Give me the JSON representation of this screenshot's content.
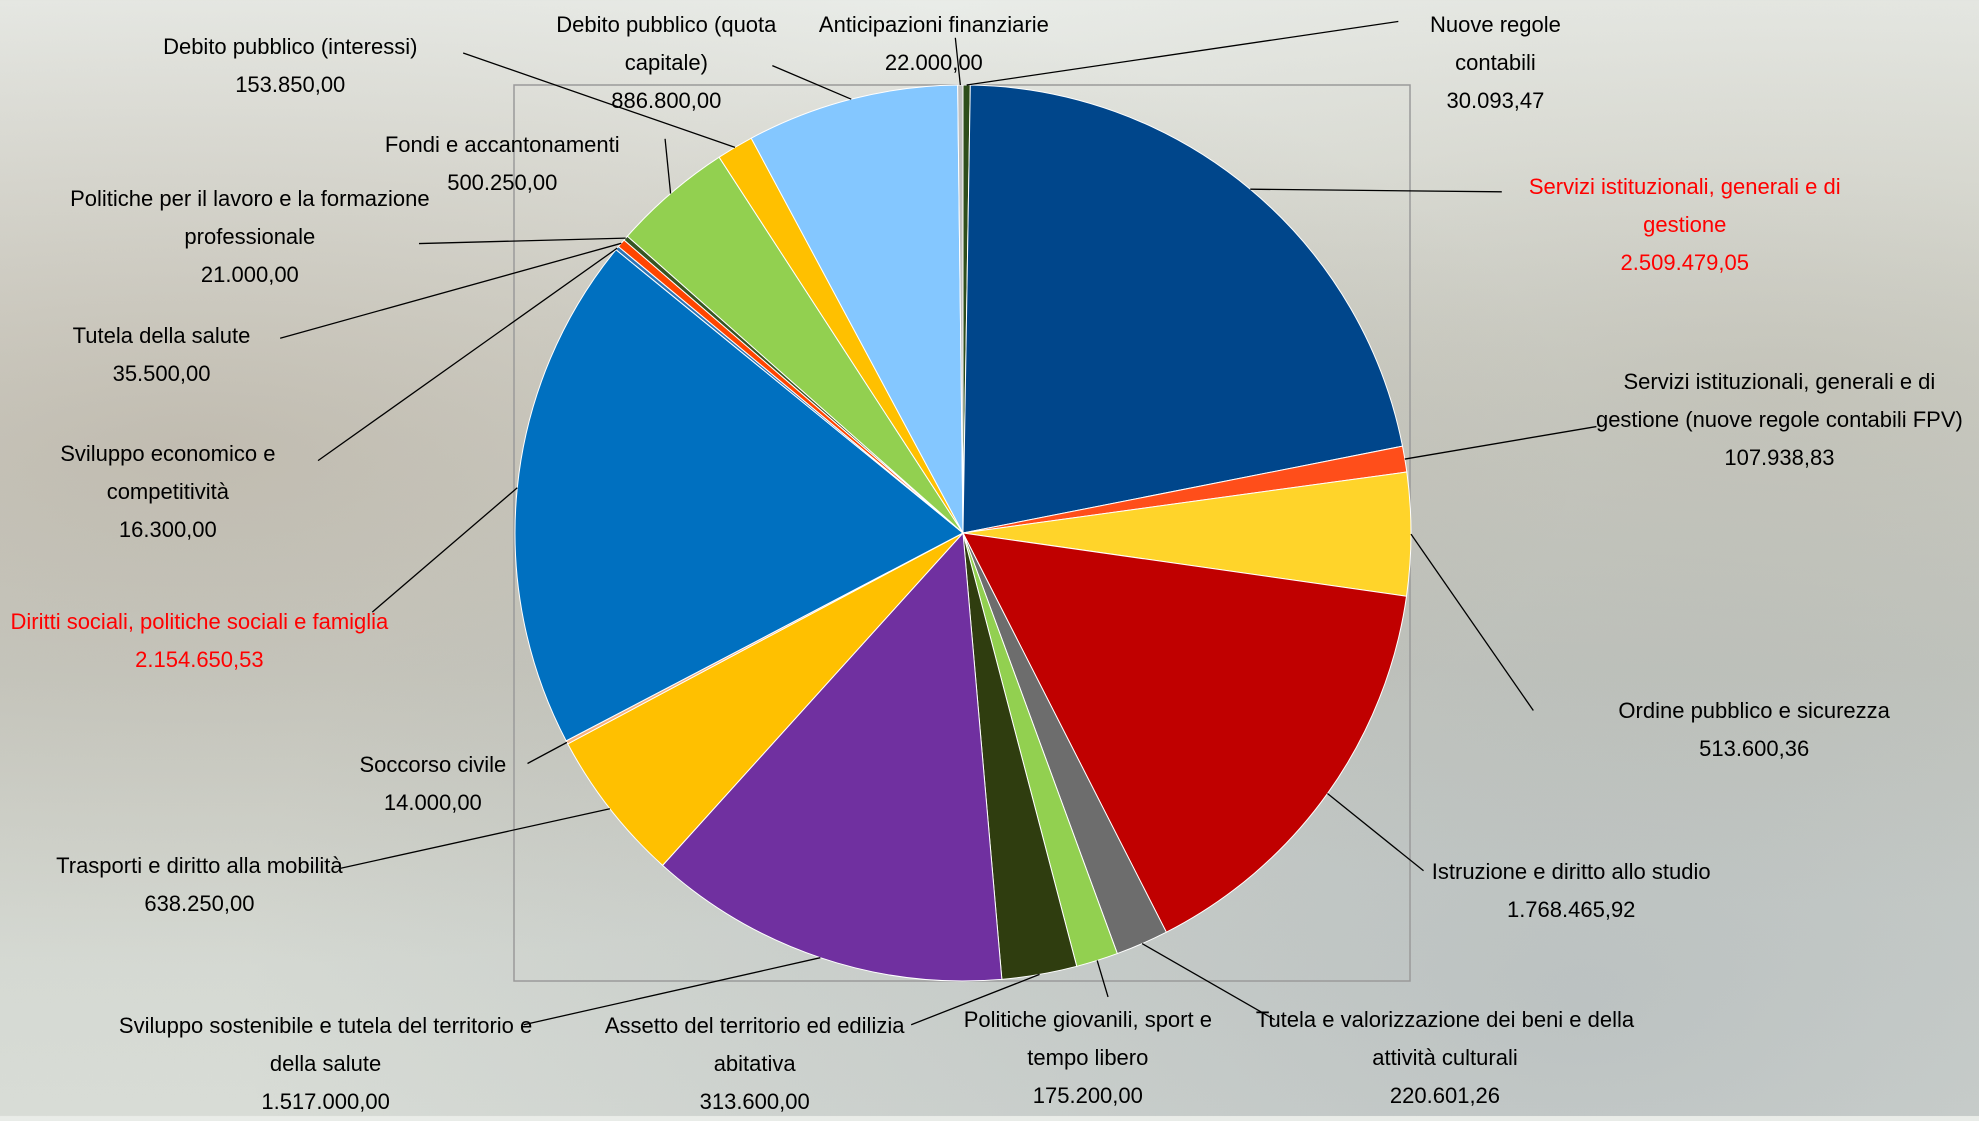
{
  "chart_data": {
    "type": "pie",
    "categories": [
      "Nuove regole contabili",
      "Servizi istituzionali, generali e di gestione",
      "Servizi istituzionali, generali e di gestione (nuove regole contabili FPV)",
      "Ordine pubblico e sicurezza",
      "Istruzione e diritto allo studio",
      "Tutela e valorizzazione dei beni e della attività culturali",
      "Politiche giovanili, sport e tempo libero",
      "Assetto del territorio ed edilizia abitativa",
      "Sviluppo sostenibile e tutela del territorio e della salute",
      "Trasporti e diritto alla mobilità",
      "Soccorso civile",
      "Diritti sociali, politiche sociali e famiglia",
      "Sviluppo economico e competitività",
      "Tutela della salute",
      "Politiche per il lavoro e la formazione professionale",
      "Fondi e accantonamenti",
      "Debito pubblico (interessi)",
      "Debito pubblico (quota capitale)",
      "Anticipazioni finanziarie"
    ],
    "values": [
      30093.47,
      2509479.05,
      107938.83,
      513600.36,
      1768465.92,
      220601.26,
      175200.0,
      313600.0,
      1517000.0,
      638250.0,
      14000.0,
      2154650.53,
      16300.0,
      35500.0,
      21000.0,
      500250.0,
      153850.0,
      886800.0,
      22000.0
    ],
    "value_labels": [
      "30.093,47",
      "2.509.479,05",
      "107.938,83",
      "513.600,36",
      "1.768.465,92",
      "220.601,26",
      "175.200,00",
      "313.600,00",
      "1.517.000,00",
      "638.250,00",
      "14.000,00",
      "2.154.650,53",
      "16.300,00",
      "35.500,00",
      "21.000,00",
      "500.250,00",
      "153.850,00",
      "886.800,00",
      "22.000,00"
    ],
    "colors": [
      "#2e4d1a",
      "#00468b",
      "#ff4e1a",
      "#ffd42a",
      "#c00000",
      "#6d6d6d",
      "#92d050",
      "#2f3d0f",
      "#7030a0",
      "#ffc000",
      "#f4b183",
      "#0070c0",
      "#2e75b6",
      "#ff4500",
      "#375623",
      "#92d050",
      "#ffc000",
      "#84c7ff",
      "#c0c0c0"
    ],
    "label_colors": [
      "#000000",
      "#ff0000",
      "#000000",
      "#000000",
      "#000000",
      "#000000",
      "#000000",
      "#000000",
      "#000000",
      "#000000",
      "#000000",
      "#ff0000",
      "#000000",
      "#000000",
      "#000000",
      "#000000",
      "#000000",
      "#000000",
      "#000000"
    ]
  }
}
